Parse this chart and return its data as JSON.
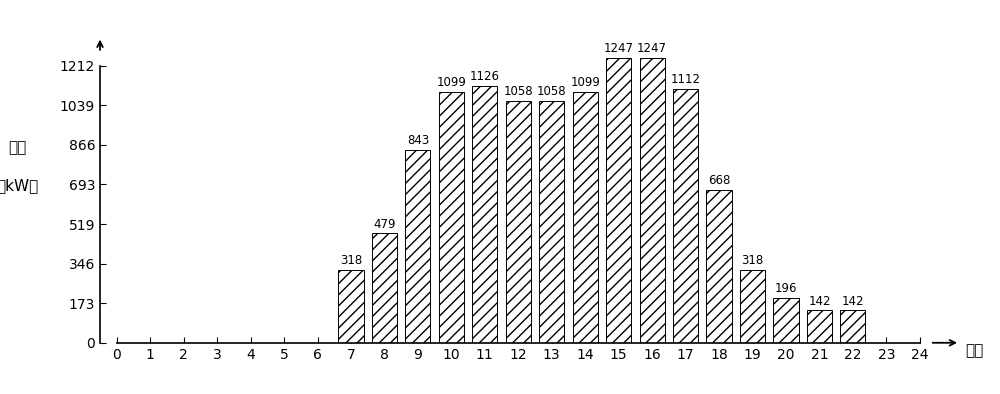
{
  "hours": [
    7,
    8,
    9,
    10,
    11,
    12,
    13,
    14,
    15,
    16,
    17,
    18,
    19,
    20,
    21,
    22
  ],
  "values": [
    318,
    479,
    843,
    1099,
    1126,
    1058,
    1058,
    1099,
    1247,
    1247,
    1112,
    668,
    318,
    196,
    142,
    142
  ],
  "bar_color": "#ffffff",
  "bar_edge_color": "#000000",
  "hatch": "///",
  "xlabel": "时刻",
  "ylabel_line1": "负荷",
  "ylabel_line2": "（kW）",
  "xlim_min": -0.5,
  "xlim_max": 25.5,
  "ylim_min": 0,
  "ylim_max": 1380,
  "yticks": [
    0,
    173,
    346,
    519,
    693,
    866,
    1039,
    1212
  ],
  "xticks": [
    0,
    1,
    2,
    3,
    4,
    5,
    6,
    7,
    8,
    9,
    10,
    11,
    12,
    13,
    14,
    15,
    16,
    17,
    18,
    19,
    20,
    21,
    22,
    23,
    24
  ],
  "bar_width": 0.75,
  "background_color": "#ffffff",
  "font_size_tick": 10,
  "font_size_bar_label": 8.5,
  "font_size_axlabel": 11
}
